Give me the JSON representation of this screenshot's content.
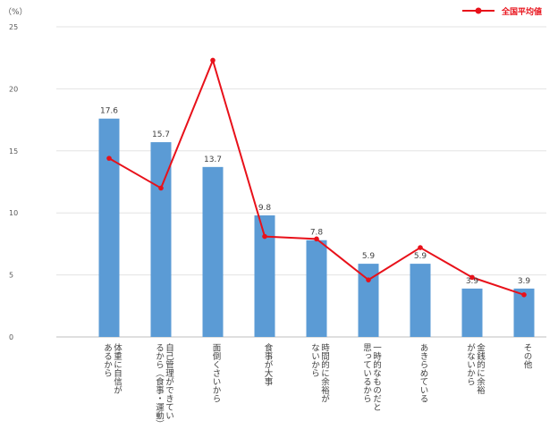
{
  "chart_data": {
    "type": "bar",
    "yunit": "（%）",
    "ylim": [
      0,
      25
    ],
    "yticks": [
      0,
      5,
      10,
      15,
      20,
      25
    ],
    "grid": true,
    "legend_position": "top-right",
    "categories": [
      [
        "体重に自信が",
        "あるから"
      ],
      [
        "自己管理ができてい",
        "るから（食事・運動）"
      ],
      [
        "面倒くさいから"
      ],
      [
        "食事が大事"
      ],
      [
        "時間的に余裕が",
        "ないから"
      ],
      [
        "一時的なものだと",
        "思っているから"
      ],
      [
        "あきらめている"
      ],
      [
        "金銭的に余裕",
        "がないから"
      ],
      [
        "その他"
      ]
    ],
    "series": [
      {
        "name": "",
        "kind": "bar",
        "color": "#5b9bd5",
        "values": [
          17.6,
          15.7,
          13.7,
          9.8,
          7.8,
          5.9,
          5.9,
          3.9,
          3.9
        ],
        "value_labels": [
          "17.6",
          "15.7",
          "13.7",
          "9.8",
          "7.8",
          "5.9",
          "5.9",
          "3.9",
          "3.9"
        ]
      },
      {
        "name": "全国平均値",
        "kind": "line",
        "color": "#e8111a",
        "values": [
          14.4,
          12.0,
          22.3,
          8.1,
          7.9,
          4.6,
          7.2,
          4.8,
          3.4
        ]
      }
    ]
  }
}
